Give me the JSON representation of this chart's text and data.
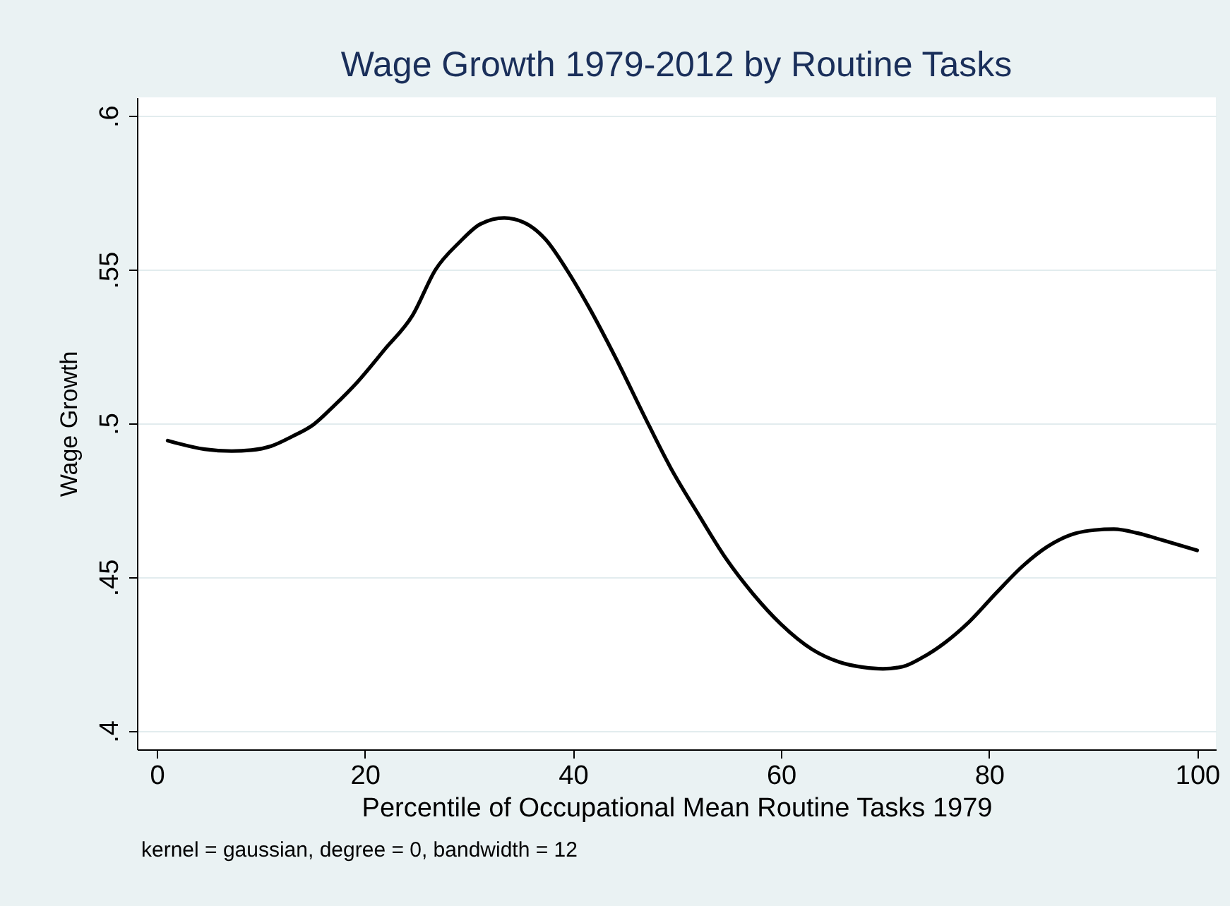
{
  "chart_data": {
    "type": "line",
    "title": "Wage Growth 1979-2012 by Routine Tasks",
    "xlabel": "Percentile of Occupational Mean Routine Tasks 1979",
    "ylabel": "Wage Growth",
    "annotations": [
      "kernel = gaussian, degree = 0, bandwidth = 12"
    ],
    "xlim": [
      -1.9,
      101.8
    ],
    "ylim": [
      0.394,
      0.606
    ],
    "xticks": [
      0,
      20,
      40,
      60,
      80,
      100
    ],
    "yticks": [
      {
        "value": 0.4,
        "label": ".4"
      },
      {
        "value": 0.45,
        "label": ".45"
      },
      {
        "value": 0.5,
        "label": ".5"
      },
      {
        "value": 0.55,
        "label": ".55"
      },
      {
        "value": 0.6,
        "label": ".6"
      }
    ],
    "grid": "y",
    "marker": "none",
    "line_style": "solid",
    "x": [
      1.05,
      4.6,
      7.2,
      9.1,
      11,
      13,
      15.1,
      17,
      19.3,
      21.9,
      24.6,
      26.8,
      29.1,
      31.1,
      33.4,
      35.3,
      37.4,
      39.4,
      41.5,
      44.2,
      46.8,
      49.4,
      52.1,
      54.7,
      57.3,
      60,
      63,
      65.6,
      67.9,
      69.8,
      71.7,
      73.5,
      75.8,
      78.1,
      80.7,
      83.3,
      85.6,
      87.9,
      90.1,
      92,
      94.3,
      96.5,
      100
    ],
    "series": [
      {
        "color": "#000000",
        "values": [
          0.4944,
          0.4916,
          0.491,
          0.4913,
          0.4926,
          0.4957,
          0.4997,
          0.5056,
          0.5135,
          0.524,
          0.5352,
          0.55,
          0.5589,
          0.5648,
          0.5668,
          0.5653,
          0.5597,
          0.55,
          0.538,
          0.5207,
          0.5028,
          0.4855,
          0.4702,
          0.4561,
          0.4446,
          0.4347,
          0.4265,
          0.4224,
          0.4207,
          0.4202,
          0.4209,
          0.4237,
          0.4288,
          0.4355,
          0.4449,
          0.4538,
          0.4599,
          0.4638,
          0.4653,
          0.4656,
          0.4643,
          0.4622,
          0.4587
        ]
      }
    ]
  }
}
